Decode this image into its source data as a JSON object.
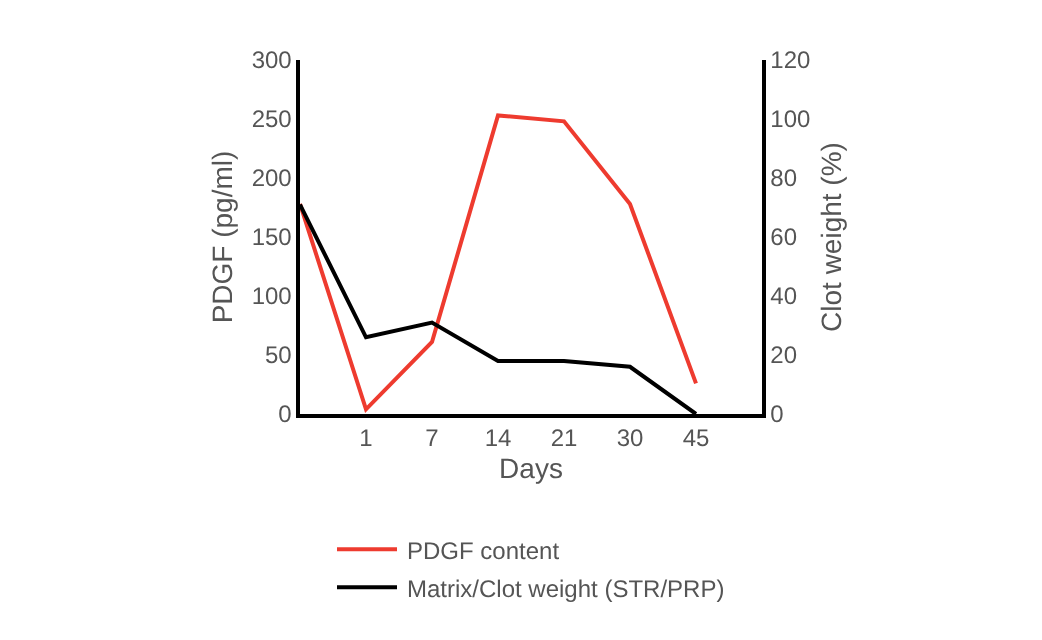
{
  "chart_data": {
    "type": "line",
    "xlabel": "Days",
    "ylabel": "PDGF (pg/ml)",
    "y2label": "Clot weight (%)",
    "categories": [
      null,
      "1",
      "7",
      "14",
      "21",
      "30",
      "45",
      null
    ],
    "series": [
      {
        "name": "PDGF content",
        "color": "#ee3b2f",
        "values": [
          178,
          4,
          61,
          253,
          248,
          178,
          26,
          null
        ]
      },
      {
        "name": "Matrix/Clot weight (STR/PRP)",
        "color": "#000000",
        "axis": "y2",
        "values": [
          71,
          26,
          31,
          18,
          18,
          16,
          0,
          null
        ]
      }
    ],
    "ylim": [
      0,
      300
    ],
    "yticks": [
      0,
      50,
      100,
      150,
      200,
      250,
      300
    ],
    "y2lim": [
      0,
      120
    ],
    "y2ticks": [
      0,
      20,
      40,
      60,
      80,
      100,
      120
    ],
    "legend": "bottom",
    "marker": "none",
    "line_style": "solid"
  }
}
